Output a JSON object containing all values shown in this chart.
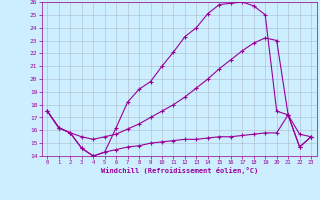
{
  "xlabel": "Windchill (Refroidissement éolien,°C)",
  "background_color": "#cceeff",
  "grid_color": "#aabbcc",
  "line_color": "#990099",
  "xlim": [
    -0.5,
    23.5
  ],
  "ylim": [
    14,
    26
  ],
  "yticks": [
    14,
    15,
    16,
    17,
    18,
    19,
    20,
    21,
    22,
    23,
    24,
    25,
    26
  ],
  "xticks": [
    0,
    1,
    2,
    3,
    4,
    5,
    6,
    7,
    8,
    9,
    10,
    11,
    12,
    13,
    14,
    15,
    16,
    17,
    18,
    19,
    20,
    21,
    22,
    23
  ],
  "line1_x": [
    0,
    1,
    2,
    3,
    4,
    5,
    6,
    7,
    8,
    9,
    10,
    11,
    12,
    13,
    14,
    15,
    16,
    17,
    18,
    19,
    20,
    21,
    22,
    23
  ],
  "line1_y": [
    17.5,
    16.2,
    15.8,
    14.6,
    14.0,
    14.3,
    16.2,
    18.2,
    19.2,
    19.8,
    21.0,
    22.1,
    23.3,
    24.0,
    25.1,
    25.8,
    25.9,
    26.0,
    25.7,
    25.0,
    17.5,
    17.2,
    14.7,
    15.5
  ],
  "line2_x": [
    0,
    1,
    2,
    3,
    4,
    5,
    6,
    7,
    8,
    9,
    10,
    11,
    12,
    13,
    14,
    15,
    16,
    17,
    18,
    19,
    20,
    21,
    22,
    23
  ],
  "line2_y": [
    17.5,
    16.2,
    15.8,
    15.5,
    15.3,
    15.5,
    15.7,
    16.1,
    16.5,
    17.0,
    17.5,
    18.0,
    18.6,
    19.3,
    20.0,
    20.8,
    21.5,
    22.2,
    22.8,
    23.2,
    23.0,
    17.2,
    15.7,
    15.5
  ],
  "line3_x": [
    0,
    1,
    2,
    3,
    4,
    5,
    6,
    7,
    8,
    9,
    10,
    11,
    12,
    13,
    14,
    15,
    16,
    17,
    18,
    19,
    20,
    21,
    22,
    23
  ],
  "line3_y": [
    17.5,
    16.2,
    15.8,
    14.6,
    14.0,
    14.3,
    14.5,
    14.7,
    14.8,
    15.0,
    15.1,
    15.2,
    15.3,
    15.3,
    15.4,
    15.5,
    15.5,
    15.6,
    15.7,
    15.8,
    15.8,
    17.2,
    14.7,
    15.5
  ]
}
